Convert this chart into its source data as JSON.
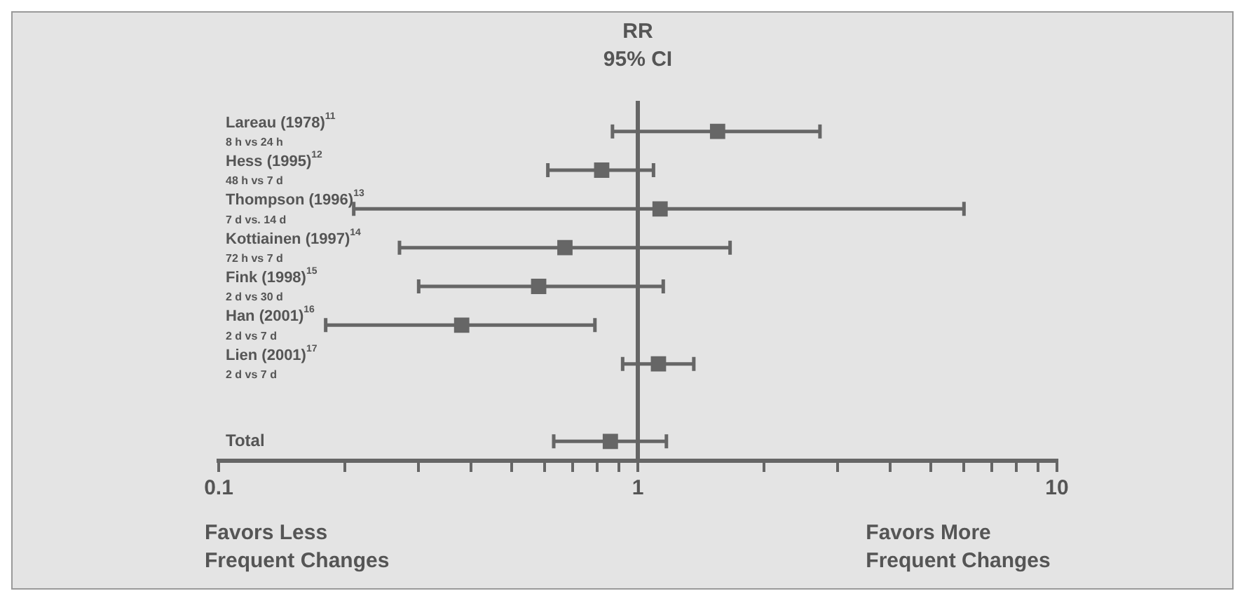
{
  "chart_data": {
    "type": "scatter",
    "orientation": "horizontal",
    "title": "RR\n95% CI",
    "categories": [
      "Lareau (1978)$^{11}$\n8 h vs 24 h",
      "Hess (1995)$^{12}$\n48 h vs 7 d",
      "Thompson (1996)$^{13}$\n7 d vs. 14 d",
      "Kottiainen (1997)$^{14}$\n72 h vs 7 d",
      "Fink (1998)$^{15}$\n2 d vs 30 d",
      "Han (2001)$^{16}$\n2 d vs 7 d",
      "Lien (2001)$^{17}$\n2 d vs 7 d",
      null,
      "Total"
    ],
    "values": [
      1.55,
      0.82,
      1.13,
      0.67,
      0.58,
      0.38,
      1.12,
      null,
      0.86
    ],
    "errors": [
      [
        0.87,
        2.72
      ],
      [
        0.61,
        1.09
      ],
      [
        0.21,
        6.0
      ],
      [
        0.27,
        1.66
      ],
      [
        0.3,
        1.15
      ],
      [
        0.18,
        0.79
      ],
      [
        0.92,
        1.36
      ],
      null,
      [
        0.63,
        1.17
      ]
    ],
    "color": "#666666",
    "marker": "square",
    "log": "x",
    "xlim": [
      0.1,
      10
    ],
    "xticks": [
      0.1,
      {
        "value": 0.2,
        "label": null
      },
      {
        "value": 0.3,
        "label": null
      },
      {
        "value": 0.4,
        "label": null
      },
      {
        "value": 0.5,
        "label": null
      },
      {
        "value": 0.6,
        "label": null
      },
      {
        "value": 0.7,
        "label": null
      },
      {
        "value": 0.8,
        "label": null
      },
      {
        "value": 0.9,
        "label": null
      },
      1,
      {
        "value": 2,
        "label": null
      },
      {
        "value": 3,
        "label": null
      },
      {
        "value": 4,
        "label": null
      },
      {
        "value": 5,
        "label": null
      },
      {
        "value": 6,
        "label": null
      },
      {
        "value": 7,
        "label": null
      },
      {
        "value": 8,
        "label": null
      },
      {
        "value": 9,
        "label": null
      },
      10
    ],
    "ref_lines": [
      {
        "axis": "x",
        "value": 1
      }
    ],
    "annotations": [
      "Favors Less\nFrequent Changes",
      "Favors More\nFrequent Changes"
    ],
    "grid": false,
    "legend": false
  }
}
